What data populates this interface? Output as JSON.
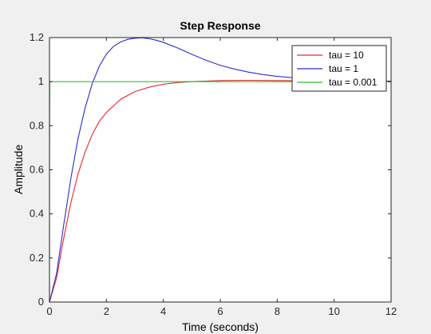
{
  "chart_data": {
    "type": "line",
    "title": "Step Response",
    "xlabel": "Time (seconds)",
    "ylabel": "Amplitude",
    "xlim": [
      0,
      12
    ],
    "ylim": [
      0,
      1.2
    ],
    "xticks": [
      "0",
      "2",
      "4",
      "6",
      "8",
      "10",
      "12"
    ],
    "yticks": [
      "0",
      "0.2",
      "0.4",
      "0.6",
      "0.8",
      "1",
      "1.2"
    ],
    "grid": false,
    "legend": "top-right",
    "series": [
      {
        "name": "tau = 10",
        "color": "#e8292d",
        "x": [
          0,
          0.25,
          0.5,
          0.75,
          1,
          1.25,
          1.5,
          1.75,
          2,
          2.5,
          3,
          3.5,
          4,
          4.5,
          5,
          6,
          7,
          8,
          9,
          10,
          11,
          12
        ],
        "y": [
          0,
          0.11,
          0.29,
          0.45,
          0.58,
          0.68,
          0.76,
          0.82,
          0.86,
          0.92,
          0.955,
          0.975,
          0.988,
          0.996,
          1.0,
          1.005,
          1.006,
          1.005,
          1.004,
          1.003,
          1.002,
          1.001
        ]
      },
      {
        "name": "tau = 1",
        "color": "#2b2bd1",
        "x": [
          0,
          0.25,
          0.5,
          0.75,
          1,
          1.25,
          1.5,
          1.75,
          2,
          2.25,
          2.5,
          2.75,
          3,
          3.25,
          3.5,
          3.75,
          4,
          4.5,
          5,
          5.5,
          6,
          6.5,
          7,
          7.5,
          8,
          9,
          10,
          11,
          12
        ],
        "y": [
          0,
          0.13,
          0.35,
          0.56,
          0.74,
          0.88,
          0.99,
          1.07,
          1.125,
          1.16,
          1.18,
          1.192,
          1.197,
          1.199,
          1.195,
          1.188,
          1.178,
          1.153,
          1.124,
          1.097,
          1.074,
          1.057,
          1.043,
          1.032,
          1.024,
          1.013,
          1.007,
          1.004,
          1.002
        ]
      },
      {
        "name": "tau = 0.001",
        "color": "#2fbf2f",
        "x": [
          0,
          0.001,
          0.01,
          12
        ],
        "y": [
          0,
          0.6,
          1.0,
          1.0
        ]
      }
    ]
  }
}
